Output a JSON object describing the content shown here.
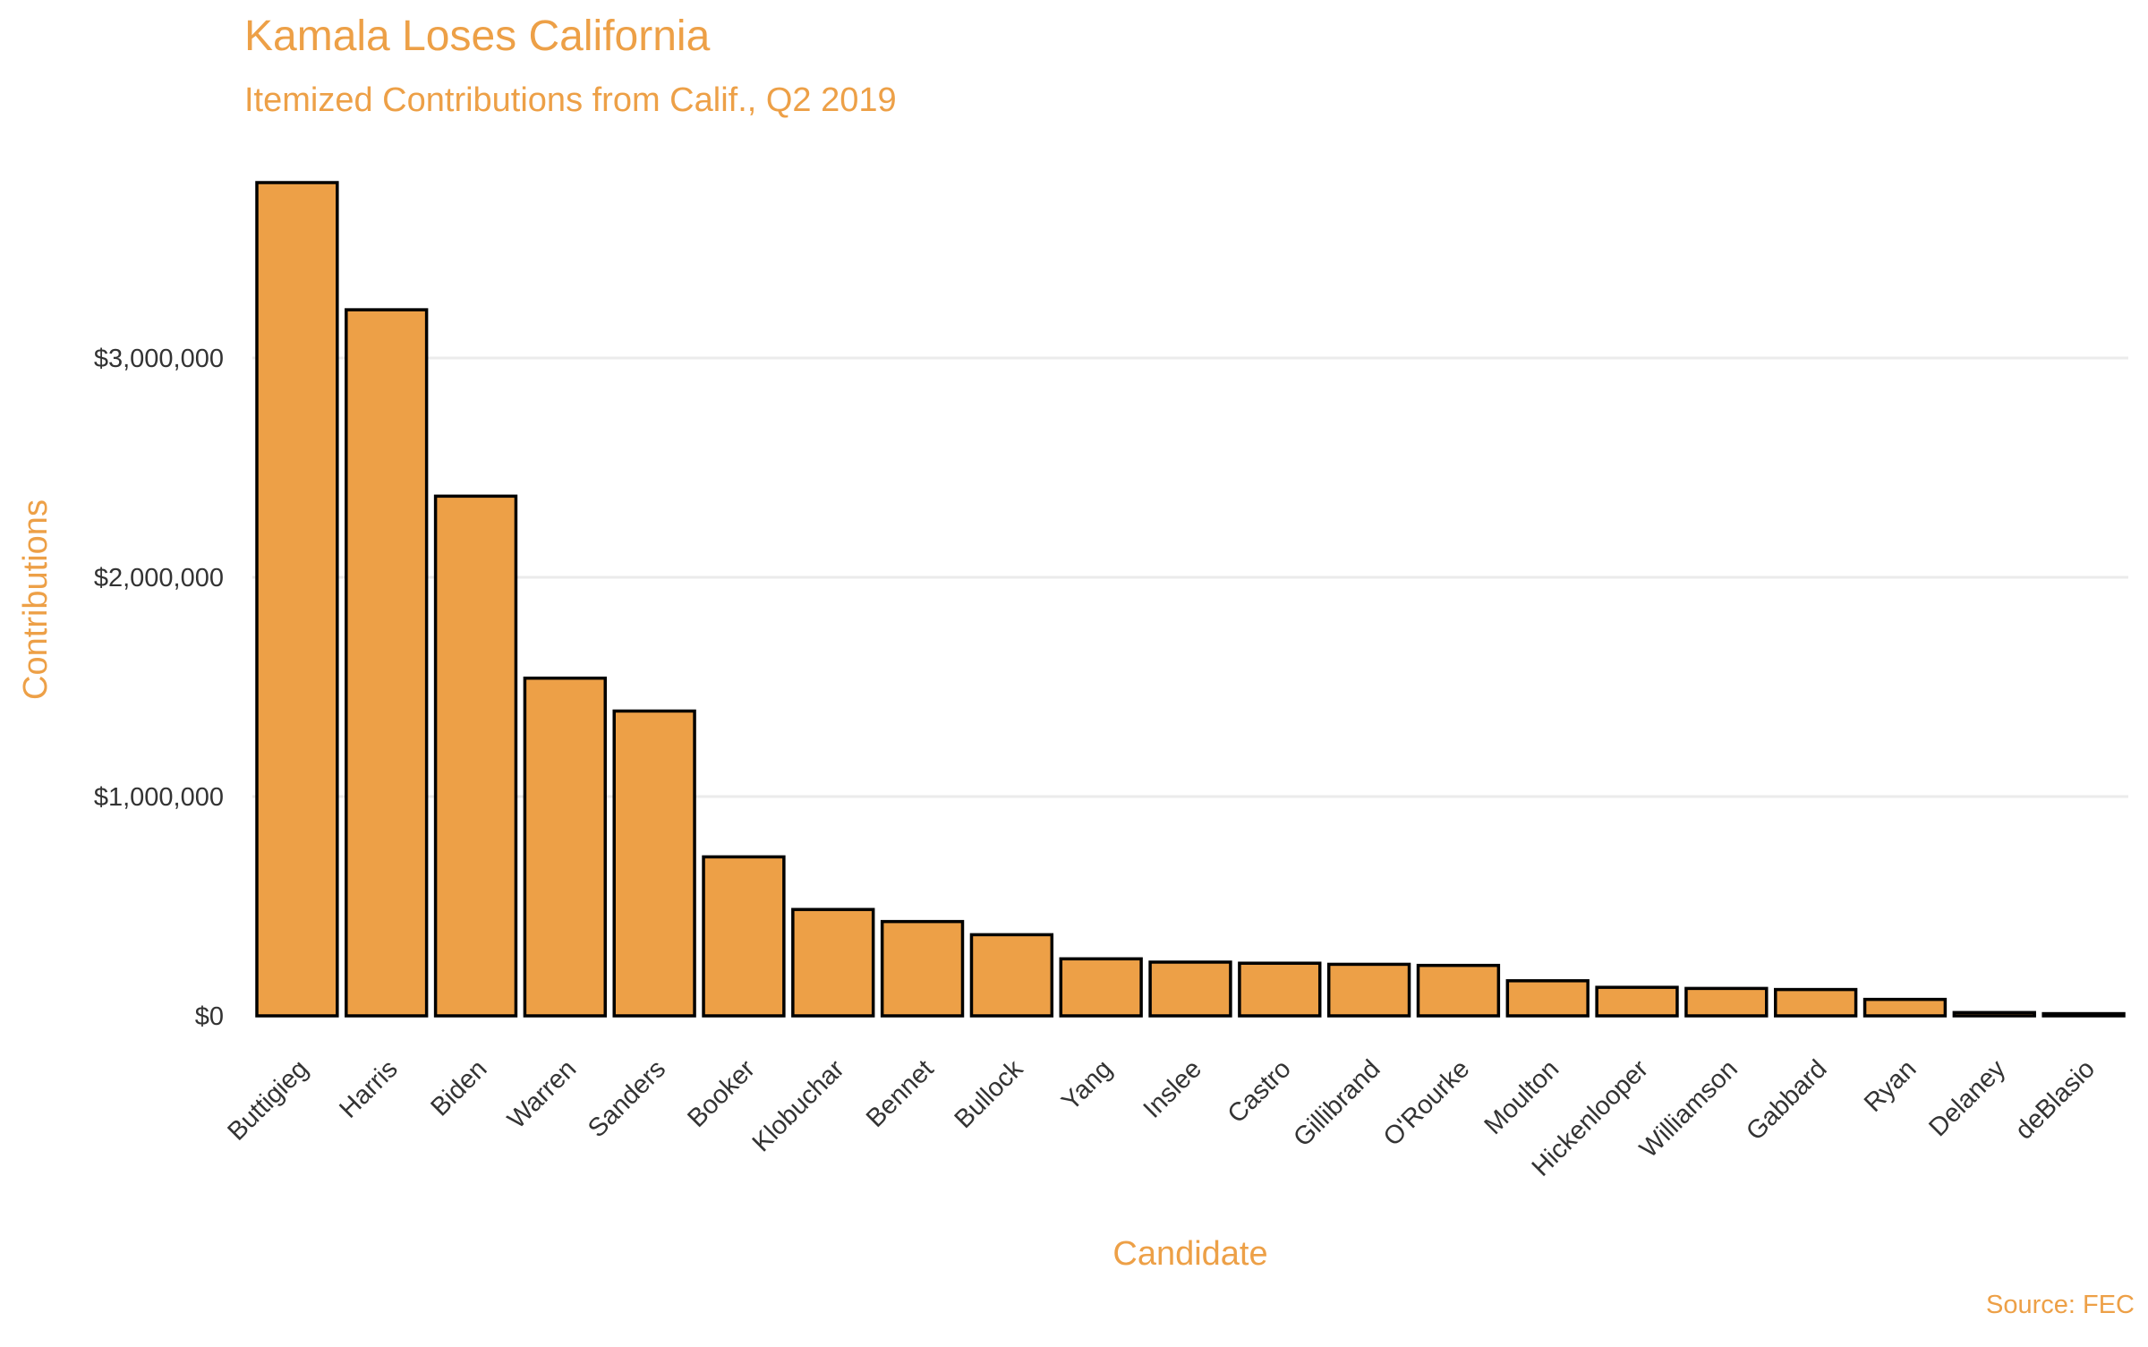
{
  "chart_data": {
    "type": "bar",
    "title": "Kamala Loses California",
    "subtitle": "Itemized Contributions from Calif., Q2 2019",
    "xlabel": "Candidate",
    "ylabel": "Contributions",
    "caption": "Source: FEC",
    "categories": [
      "Buttigieg",
      "Harris",
      "Biden",
      "Warren",
      "Sanders",
      "Booker",
      "Klobuchar",
      "Bennet",
      "Bullock",
      "Yang",
      "Inslee",
      "Castro",
      "Gillibrand",
      "O'Rourke",
      "Moulton",
      "Hickenlooper",
      "Williamson",
      "Gabbard",
      "Ryan",
      "Delaney",
      "deBlasio"
    ],
    "values": [
      3800000,
      3220000,
      2370000,
      1540000,
      1390000,
      725000,
      485000,
      430000,
      370000,
      260000,
      245000,
      240000,
      235000,
      230000,
      160000,
      130000,
      125000,
      120000,
      75000,
      15000,
      10000
    ],
    "yticks": [
      {
        "value": 0,
        "label": "$0"
      },
      {
        "value": 1000000,
        "label": "$1,000,000"
      },
      {
        "value": 2000000,
        "label": "$2,000,000"
      },
      {
        "value": 3000000,
        "label": "$3,000,000"
      }
    ],
    "ylim": [
      0,
      3800000
    ],
    "grid": true,
    "colors": {
      "bar_fill": "#EDA047",
      "bar_outline": "#000000",
      "title": "#EDA047",
      "grid": "#EBEBEB",
      "tick_text": "#333333"
    }
  }
}
